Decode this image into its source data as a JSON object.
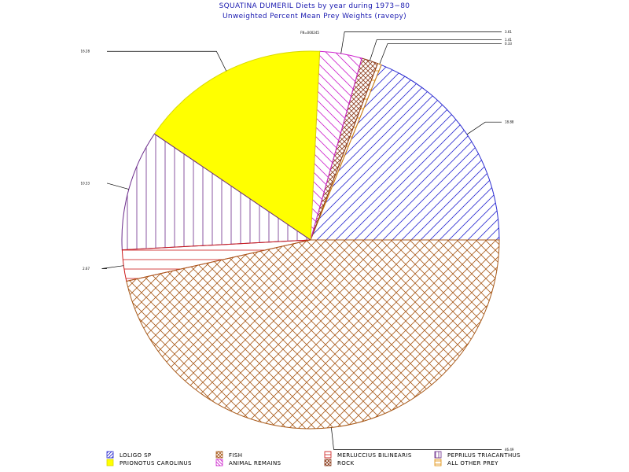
{
  "chart_data": {
    "type": "pie",
    "title": "SQUATINA DUMERIL Diets by year during 1973−80",
    "subtitle": "Unweighted Percent Mean Prey Weights (ravepy)",
    "top_note": "FN=000245",
    "slices": [
      {
        "name": "LOLIGO SP",
        "value": 18.88,
        "label": "18.88",
        "color": "#2a2ad0",
        "pattern": "diag-fwd",
        "fill": "none"
      },
      {
        "name": "ALL OTHER PREY",
        "value": 0.33,
        "label": "0.33",
        "color": "#e08a00",
        "pattern": "horiz",
        "fill": "none"
      },
      {
        "name": "ROCK",
        "value": 1.41,
        "label": "1.41",
        "color": "#8a3a1a",
        "pattern": "cross-dense",
        "fill": "none"
      },
      {
        "name": "ANIMAL REMAINS",
        "value": 3.61,
        "label": "3.61",
        "color": "#cc22cc",
        "pattern": "diag-back",
        "fill": "none"
      },
      {
        "name": "PRIONOTUS CAROLINUS",
        "value": 16.28,
        "label": "16.28",
        "color": "#e0e000",
        "pattern": "solid",
        "fill": "#ffff00"
      },
      {
        "name": "PEPRILUS TRIACANTHUS",
        "value": 10.33,
        "label": "10.33",
        "color": "#6a2a8a",
        "pattern": "vert",
        "fill": "none"
      },
      {
        "name": "MERLUCCIUS BILINEARIS",
        "value": 2.67,
        "label": "2.67",
        "color": "#cc1a1a",
        "pattern": "horiz",
        "fill": "none"
      },
      {
        "name": "FISH",
        "value": 46.49,
        "label": "46.49",
        "color": "#a85a1a",
        "pattern": "cross",
        "fill": "none"
      }
    ],
    "legend": [
      {
        "name": "LOLIGO SP",
        "color": "#2a2ad0",
        "pattern": "diag-fwd"
      },
      {
        "name": "FISH",
        "color": "#a85a1a",
        "pattern": "cross"
      },
      {
        "name": "MERLUCCIUS BILINEARIS",
        "color": "#cc1a1a",
        "pattern": "horiz"
      },
      {
        "name": "PEPRILUS TRIACANTHUS",
        "color": "#6a2a8a",
        "pattern": "vert"
      },
      {
        "name": "PRIONOTUS CAROLINUS",
        "color": "#e0e000",
        "pattern": "solid"
      },
      {
        "name": "ANIMAL REMAINS",
        "color": "#cc22cc",
        "pattern": "diag-back"
      },
      {
        "name": "ROCK",
        "color": "#8a3a1a",
        "pattern": "cross-dense"
      },
      {
        "name": "ALL OTHER PREY",
        "color": "#e08a00",
        "pattern": "horiz"
      }
    ],
    "legend_placement": "bottom",
    "start_angle_deg": 0,
    "direction": "counterclockwise"
  }
}
